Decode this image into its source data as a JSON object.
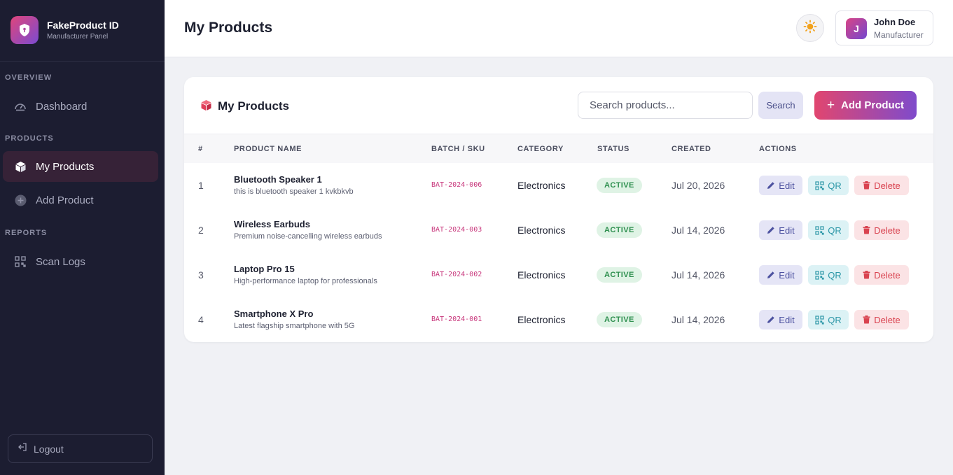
{
  "brand": {
    "title": "FakeProduct ID",
    "subtitle": "Manufacturer Panel"
  },
  "sidebar": {
    "sections": [
      {
        "label": "OVERVIEW"
      },
      {
        "label": "PRODUCTS"
      },
      {
        "label": "REPORTS"
      }
    ],
    "items": [
      {
        "label": "Dashboard",
        "icon": "dashboard-gauge-icon",
        "active": false
      },
      {
        "label": "My Products",
        "icon": "cube-icon",
        "active": true
      },
      {
        "label": "Add Product",
        "icon": "plus-circle-icon",
        "active": false
      },
      {
        "label": "Scan Logs",
        "icon": "qr-code-icon",
        "active": false
      }
    ],
    "logout_label": "Logout"
  },
  "header": {
    "title": "My Products",
    "theme_icon": "sun-icon",
    "user": {
      "initial": "J",
      "name": "John Doe",
      "role": "Manufacturer"
    }
  },
  "card": {
    "title": "My Products",
    "search_placeholder": "Search products...",
    "search_button": "Search",
    "add_button": "Add Product"
  },
  "table": {
    "columns": [
      "#",
      "PRODUCT NAME",
      "BATCH / SKU",
      "CATEGORY",
      "STATUS",
      "CREATED",
      "ACTIONS"
    ],
    "rows": [
      {
        "num": "1",
        "name": "Bluetooth Speaker 1",
        "desc": "this is bluetooth speaker 1 kvkbkvb",
        "sku": "BAT-2024-006",
        "category": "Electronics",
        "status": "ACTIVE",
        "created": "Jul 20, 2026"
      },
      {
        "num": "2",
        "name": "Wireless Earbuds",
        "desc": "Premium noise-cancelling wireless earbuds",
        "sku": "BAT-2024-003",
        "category": "Electronics",
        "status": "ACTIVE",
        "created": "Jul 14, 2026"
      },
      {
        "num": "3",
        "name": "Laptop Pro 15",
        "desc": "High-performance laptop for professionals",
        "sku": "BAT-2024-002",
        "category": "Electronics",
        "status": "ACTIVE",
        "created": "Jul 14, 2026"
      },
      {
        "num": "4",
        "name": "Smartphone X Pro",
        "desc": "Latest flagship smartphone with 5G",
        "sku": "BAT-2024-001",
        "category": "Electronics",
        "status": "ACTIVE",
        "created": "Jul 14, 2026"
      }
    ],
    "actions": {
      "edit": "Edit",
      "qr": "QR",
      "delete": "Delete"
    }
  },
  "colors": {
    "sidebar_bg": "#1c1d31",
    "accent_gradient_start": "#e1466f",
    "accent_gradient_end": "#7f4bcb",
    "status_active": "#2d8f4e",
    "sku_text": "#c8377c"
  }
}
